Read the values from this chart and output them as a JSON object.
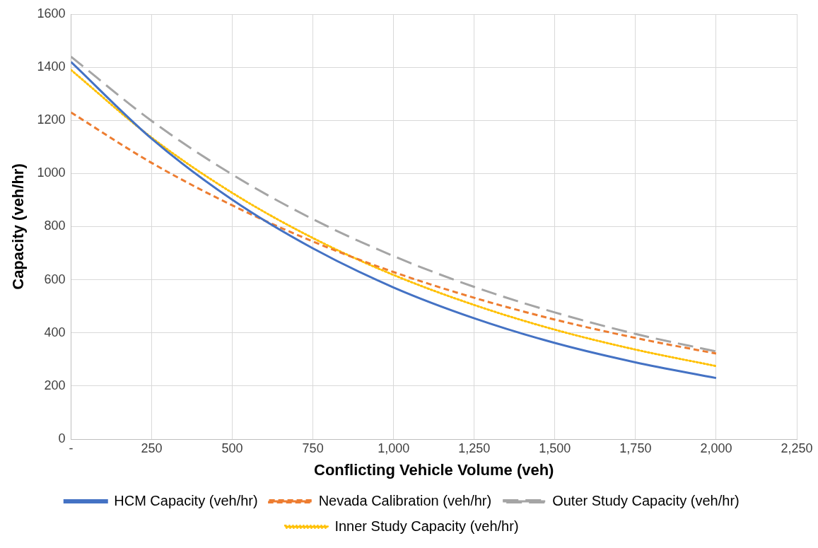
{
  "chart_data": {
    "type": "line",
    "xlabel": "Conflicting Vehicle Volume (veh)",
    "ylabel": "Capacity (veh/hr)",
    "x": [
      0,
      250,
      500,
      750,
      1000,
      1250,
      1500,
      1750,
      2000
    ],
    "series": [
      {
        "name": "HCM Capacity (veh/hr)",
        "color": "#4472c4",
        "line_style": "solid",
        "values": [
          1420,
          1131,
          901,
          718,
          571,
          455,
          362,
          289,
          230
        ]
      },
      {
        "name": "Nevada Calibration (veh/hr)",
        "color": "#ed7d31",
        "line_style": "dashed",
        "values": [
          1230,
          1040,
          880,
          744,
          629,
          532,
          450,
          381,
          322
        ]
      },
      {
        "name": "Outer Study Capacity (veh/hr)",
        "color": "#a5a5a5",
        "line_style": "longdash",
        "values": [
          1440,
          1198,
          996,
          828,
          689,
          573,
          477,
          396,
          330
        ]
      },
      {
        "name": "Inner Study Capacity (veh/hr)",
        "color": "#ffc000",
        "line_style": "dotted",
        "values": [
          1390,
          1135,
          927,
          757,
          618,
          505,
          412,
          337,
          275
        ]
      }
    ],
    "xlim": [
      0,
      2250
    ],
    "xticks": [
      {
        "value": 0,
        "label": "-"
      },
      250,
      500,
      750,
      {
        "value": 1000,
        "label": "1,000"
      },
      {
        "value": 1250,
        "label": "1,250"
      },
      {
        "value": 1500,
        "label": "1,500"
      },
      {
        "value": 1750,
        "label": "1,750"
      },
      {
        "value": 2000,
        "label": "2,000"
      },
      {
        "value": 2250,
        "label": "2,250"
      }
    ],
    "ylim": [
      0,
      1600
    ],
    "yticks": [
      0,
      200,
      400,
      600,
      800,
      1000,
      1200,
      1400,
      1600
    ],
    "grid": true,
    "legend": "bottom",
    "marker": "none"
  }
}
